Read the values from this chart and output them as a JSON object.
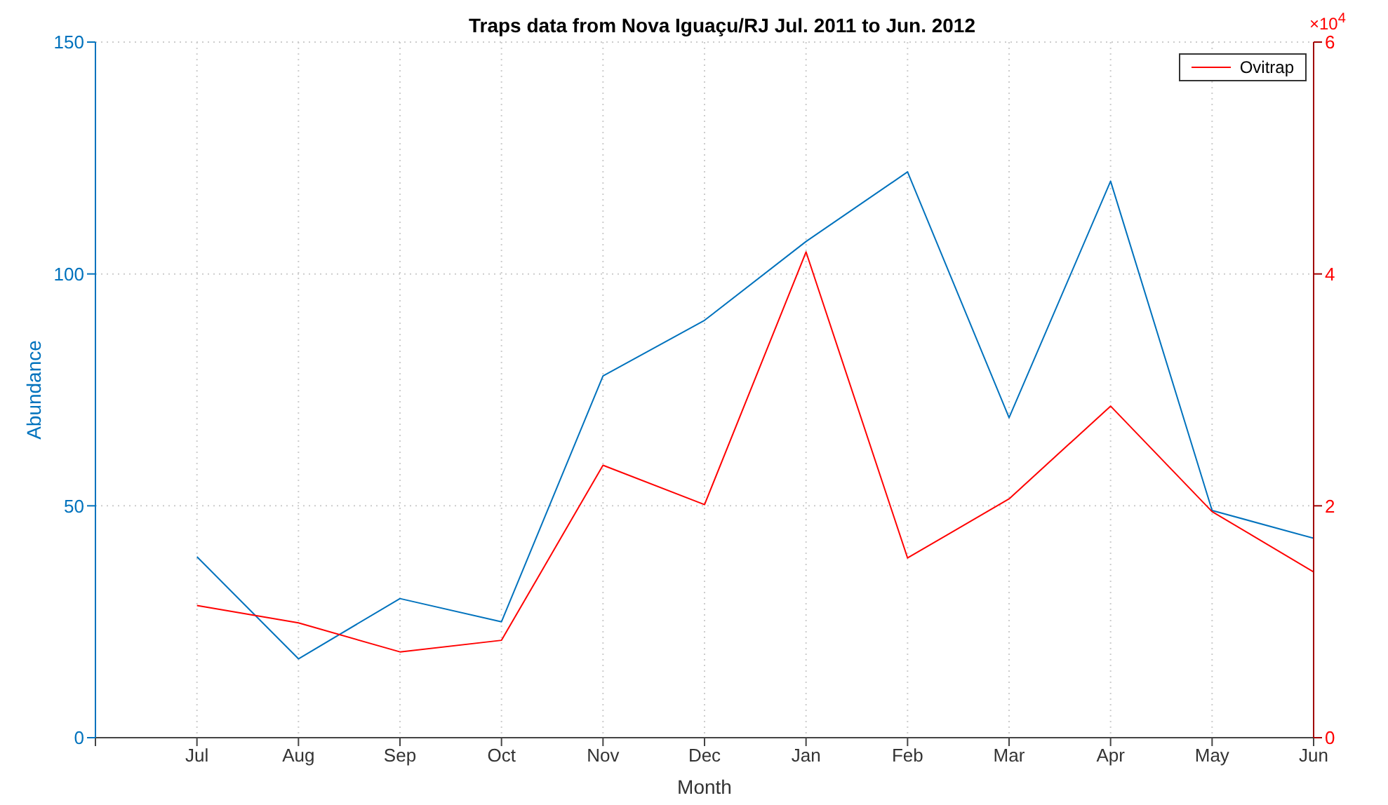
{
  "chart_data": {
    "type": "line",
    "title": "Traps data from Nova Iguaçu/RJ Jul. 2011 to Jun. 2012",
    "xlabel": "Month",
    "ylabel": "Abundance",
    "categories": [
      null,
      "Jul",
      "Aug",
      "Sep",
      "Oct",
      "Nov",
      "Dec",
      "Jan",
      "Feb",
      "Mar",
      "Apr",
      "May",
      "Jun"
    ],
    "ylim": [
      0,
      150
    ],
    "yticks": [
      0,
      50,
      100,
      150
    ],
    "y2lim": [
      0,
      6
    ],
    "y2ticks": [
      0,
      2,
      4,
      6
    ],
    "annotations": [
      "×10$^{4}$"
    ],
    "series": [
      {
        "color": "#0072bd",
        "values": [
          null,
          39,
          17,
          30,
          25,
          78,
          90,
          107,
          122,
          69,
          120,
          49,
          43
        ]
      },
      {
        "name": "Ovitrap",
        "color": "#ff0000",
        "axis": "y2",
        "values": [
          null,
          1.14,
          0.99,
          0.74,
          0.84,
          2.35,
          2.01,
          4.19,
          1.55,
          2.06,
          2.86,
          1.95,
          1.43
        ]
      }
    ],
    "grid": true,
    "legend": "top right",
    "marker": "none",
    "line_style": "solid"
  }
}
